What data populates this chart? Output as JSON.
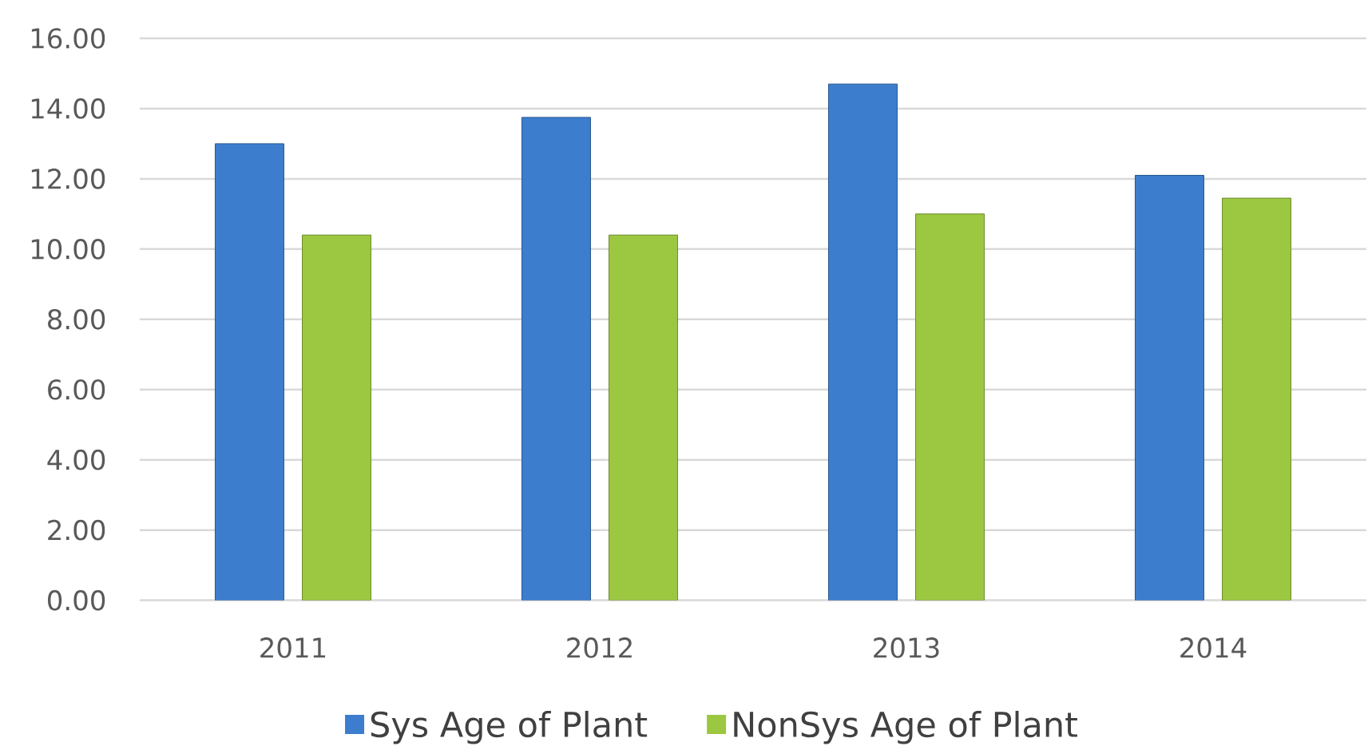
{
  "chart_data": {
    "type": "bar",
    "categories": [
      "2011",
      "2012",
      "2013",
      "2014"
    ],
    "series": [
      {
        "name": "Sys Age of Plant",
        "color": "#3c7dce",
        "values": [
          13.0,
          13.75,
          14.7,
          12.1
        ]
      },
      {
        "name": "NonSys Age of Plant",
        "color": "#9cc741",
        "values": [
          10.4,
          10.4,
          11.0,
          11.45
        ]
      }
    ],
    "ylim": [
      0,
      16
    ],
    "yticks": [
      {
        "value": 0,
        "label": "0.00"
      },
      {
        "value": 2,
        "label": "2.00"
      },
      {
        "value": 4,
        "label": "4.00"
      },
      {
        "value": 6,
        "label": "6.00"
      },
      {
        "value": 8,
        "label": "8.00"
      },
      {
        "value": 10,
        "label": "10.00"
      },
      {
        "value": 12,
        "label": "12.00"
      },
      {
        "value": 14,
        "label": "14.00"
      },
      {
        "value": 16,
        "label": "16.00"
      }
    ],
    "grid": "y",
    "legend": "bottom"
  }
}
